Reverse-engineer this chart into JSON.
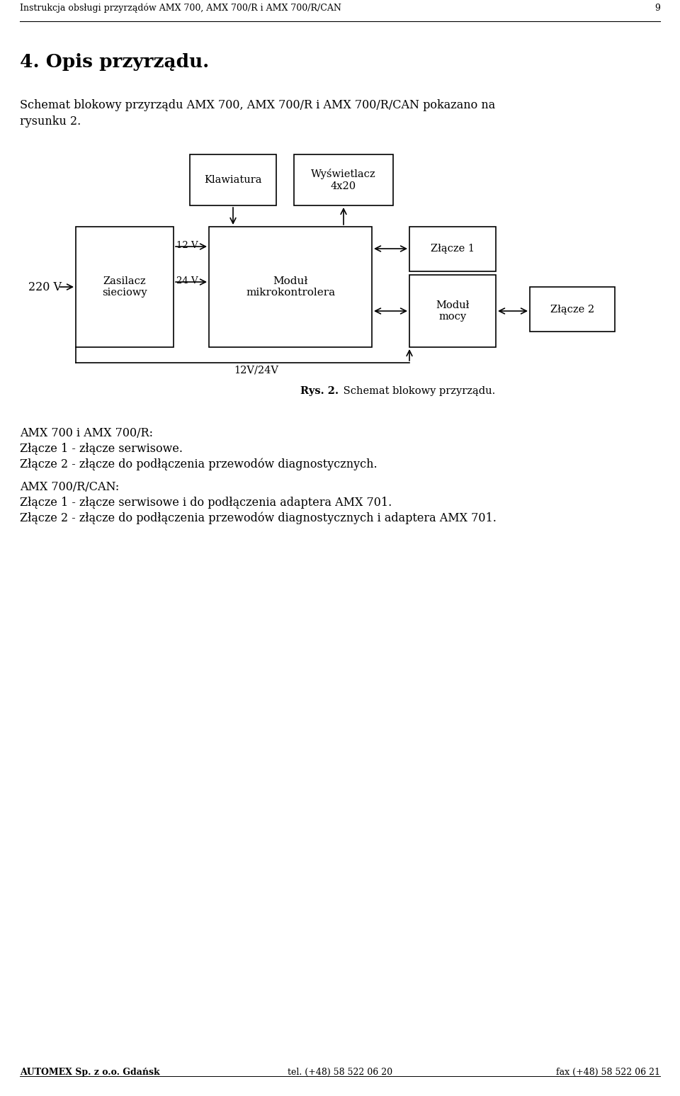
{
  "page_width": 9.6,
  "page_height": 15.47,
  "bg_color": "#ffffff",
  "header_text": "Instrukcja obsługi przyrządów AMX 700, AMX 700/R i AMX 700/R/CAN",
  "header_page_num": "9",
  "section_title": "4. Opis przyrządu.",
  "intro_line1": "Schemat blokowy przyrządu AMX 700, AMX 700/R i AMX 700/R/CAN pokazano na",
  "intro_line2": "rysunku 2.",
  "caption_bold": "Rys. 2.",
  "caption_normal": " Schemat blokowy przyrządu.",
  "lbl_klawiatura": "Klawiatura",
  "lbl_wyswietlacz": "Wyświetlacz\n4x20",
  "lbl_zasilacz": "Zasilacz\nsieciowy",
  "lbl_mikro": "Moduł\nmikrokontrolera",
  "lbl_zlacze1": "Złącze 1",
  "lbl_modul_mocy": "Moduł\nmocy",
  "lbl_zlacze2": "Złącze 2",
  "lbl_220v": "220 V",
  "lbl_12v": "12 V",
  "lbl_24v": "24 V",
  "lbl_12v24v": "12V/24V",
  "txt1": "AMX 700 i AMX 700/R:",
  "txt2": "Złącze 1 - złącze serwisowe.",
  "txt3": "Złącze 2 - złącze do podłączenia przewodów diagnostycznych.",
  "txt4": "AMX 700/R/CAN:",
  "txt5": "Złącze 1 - złącze serwisowe i do podłączenia adaptera AMX 701.",
  "txt6": "Złącze 2 - złącze do podłączenia przewodów diagnostycznych i adaptera AMX 701.",
  "footer_left": "AUTOMEX Sp. z o.o. Gdańsk",
  "footer_center": "tel. (+48) 58 522 06 20",
  "footer_right": "fax (+48) 58 522 06 21"
}
